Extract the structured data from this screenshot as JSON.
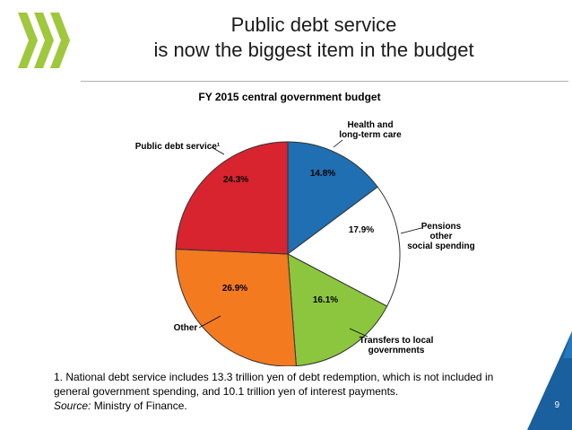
{
  "header": {
    "title_line1": "Public debt service",
    "title_line2": "is now the biggest item in the budget"
  },
  "colors": {
    "logo_green": "#9fc83c",
    "accent_blue": "#1f6fb2",
    "corner_blue": "#1a5f9e"
  },
  "chart_data": {
    "type": "pie",
    "title": "FY 2015 central government budget",
    "slices": [
      {
        "label": "Health and\nlong-term care",
        "value": 14.8,
        "value_label": "14.8%",
        "color": "#1f6fb2"
      },
      {
        "label": "Pensions\nother\nsocial spending",
        "value": 17.9,
        "value_label": "17.9%",
        "color": "#ffffff"
      },
      {
        "label": "Transfers to local\ngovernments",
        "value": 16.1,
        "value_label": "16.1%",
        "color": "#8cc63e"
      },
      {
        "label": "Other",
        "value": 26.9,
        "value_label": "26.9%",
        "color": "#f47a20"
      },
      {
        "label": "Public debt service¹",
        "value": 24.3,
        "value_label": "24.3%",
        "color": "#d7242f"
      }
    ],
    "start": "12 o'clock",
    "direction": "clockwise"
  },
  "footnote": {
    "line1": "1.  National debt service includes 13.3 trillion yen of debt redemption, which is not included in",
    "line2": "general government spending, and 10.1 trillion yen of interest payments.",
    "source_label": "Source:",
    "source_text": " Ministry of Finance."
  },
  "page_number": "9"
}
